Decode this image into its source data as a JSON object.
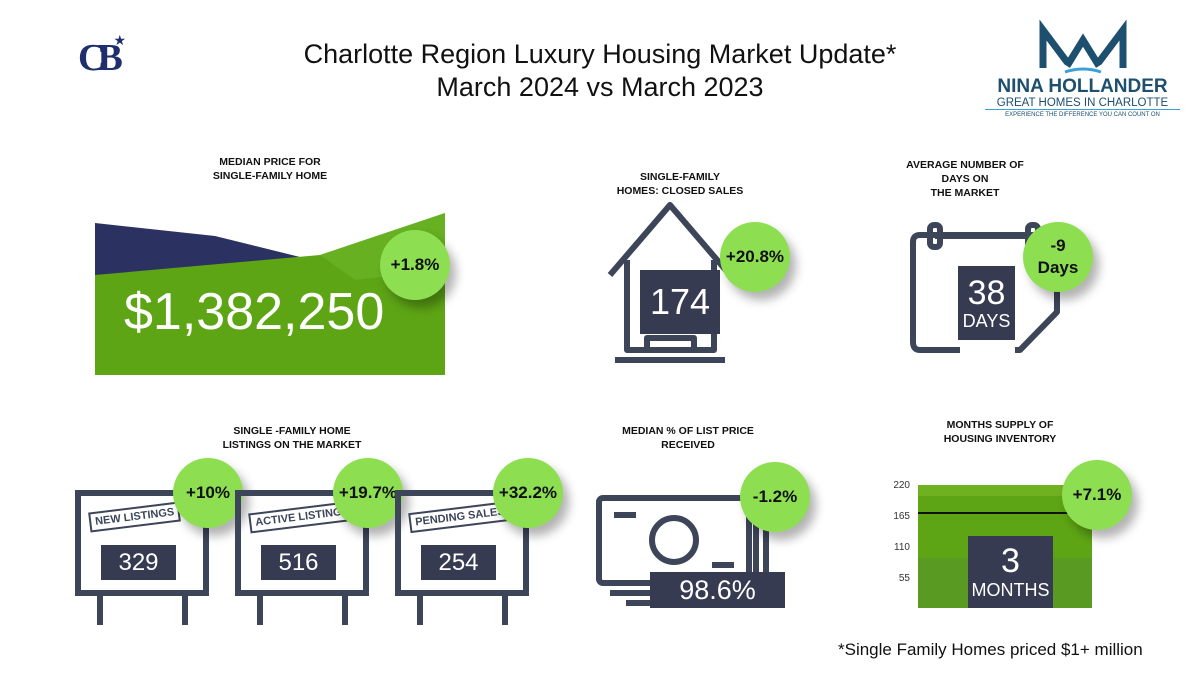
{
  "header": {
    "title_line1": "Charlotte Region Luxury Housing Market Update*",
    "title_line2": "March 2024 vs March 2023",
    "logo_left": "CB",
    "logo_right": {
      "name": "NINA HOLLANDER",
      "tagline": "GREAT HOMES IN CHARLOTTE",
      "slogan": "EXPERIENCE THE DIFFERENCE YOU CAN COUNT ON"
    }
  },
  "colors": {
    "navy": "#363b52",
    "green": "#5ea515",
    "bubble": "#8ede52",
    "dark_navy": "#2b3262"
  },
  "median_price": {
    "label_line1": "MEDIAN PRICE FOR",
    "label_line2": "SINGLE-FAMILY HOME",
    "value": "$1,382,250",
    "change": "+1.8%"
  },
  "closed_sales": {
    "label_line1": "SINGLE-FAMILY",
    "label_line2": "HOMES: CLOSED SALES",
    "value": "174",
    "change": "+20.8%",
    "icon": "house-icon"
  },
  "days_on_market": {
    "label_line1": "AVERAGE NUMBER OF",
    "label_line2": "DAYS ON",
    "label_line3": "THE MARKET",
    "value": "38",
    "unit": "DAYS",
    "change_line1": "-9",
    "change_line2": "Days",
    "icon": "calendar-icon"
  },
  "listings": {
    "label_line1": "SINGLE -FAMILY HOME",
    "label_line2": "LISTINGS ON THE MARKET",
    "items": [
      {
        "sign": "NEW LISTINGS",
        "value": "329",
        "change": "+10%"
      },
      {
        "sign": "ACTIVE LISTINGS",
        "value": "516",
        "change": "+19.7%"
      },
      {
        "sign": "PENDING SALES",
        "value": "254",
        "change": "+32.2%"
      }
    ]
  },
  "list_price": {
    "label_line1": "MEDIAN % OF LIST PRICE",
    "label_line2": "RECEIVED",
    "value": "98.6%",
    "change": "-1.2%",
    "icon": "money-icon"
  },
  "months_supply": {
    "label_line1": "MONTHS SUPPLY OF",
    "label_line2": "HOUSING INVENTORY",
    "value": "3",
    "unit": "MONTHS",
    "change": "+7.1%",
    "axis_ticks": [
      "220",
      "165",
      "110",
      "55"
    ]
  },
  "footnote": "*Single Family Homes priced $1+ million"
}
